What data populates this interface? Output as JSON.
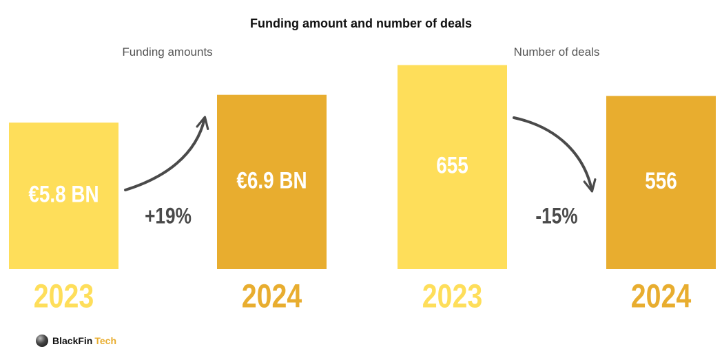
{
  "title": "Funding amount and number of deals",
  "logo": {
    "name": "BlackFin",
    "accent": "Tech"
  },
  "colors": {
    "bar_2023": "#fede5a",
    "bar_2024": "#e8ad2f",
    "change_text": "#4a4a4a",
    "arrow": "#4a4a4a"
  },
  "chart_data": [
    {
      "type": "bar",
      "title": "Funding amounts",
      "categories": [
        "2023",
        "2024"
      ],
      "values": [
        5.8,
        6.9
      ],
      "unit": "€ BN",
      "data_labels": [
        "€5.8 BN",
        "€6.9 BN"
      ],
      "change_label": "+19%",
      "ylim": [
        0,
        8.2
      ]
    },
    {
      "type": "bar",
      "title": "Number of deals",
      "categories": [
        "2023",
        "2024"
      ],
      "values": [
        655,
        556
      ],
      "data_labels": [
        "655",
        "556"
      ],
      "change_label": "-15%",
      "ylim": [
        0,
        665
      ]
    }
  ]
}
